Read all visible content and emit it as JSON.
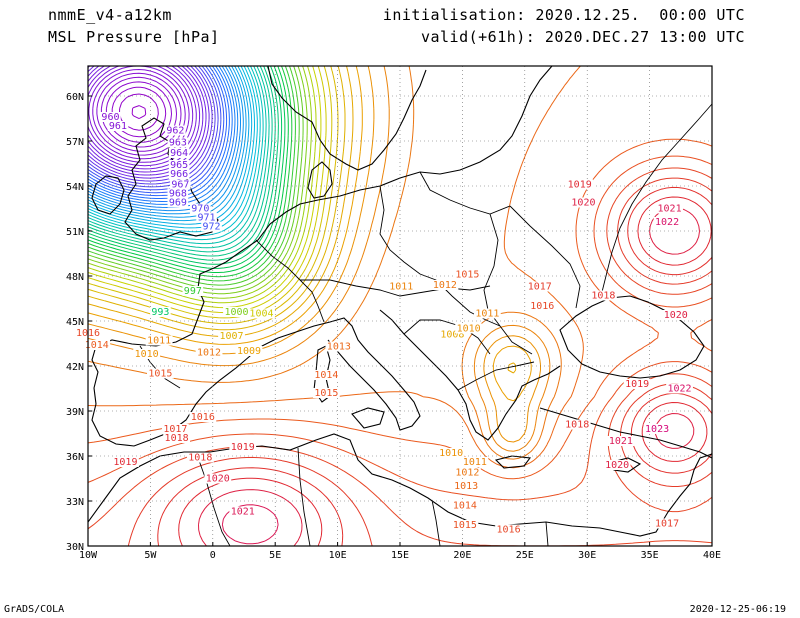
{
  "header": {
    "model": "nmmE_v4-a12km",
    "field": "MSL Pressure [hPa]",
    "initialisation": "initialisation: 2020.12.25.  00:00 UTC",
    "valid": "valid(+61h): 2020.DEC.27 13:00 UTC"
  },
  "footer": {
    "credit": "GrADS/COLA",
    "timestamp": "2020-12-25-06:19"
  },
  "map": {
    "lon_range": [
      -10,
      40
    ],
    "lat_range": [
      30,
      62
    ],
    "lon_ticks": [
      "10W",
      "5W",
      "0",
      "5E",
      "10E",
      "15E",
      "20E",
      "25E",
      "30E",
      "35E",
      "40E"
    ],
    "lat_ticks": [
      "30N",
      "33N",
      "36N",
      "39N",
      "42N",
      "45N",
      "48N",
      "51N",
      "54N",
      "57N",
      "60N"
    ],
    "grid_lines": "dotted",
    "contour_interval_hPa": 1,
    "colors": {
      "low": "#8a00c8",
      "mid_low": "#1e6bff",
      "mid": "#00c850",
      "mid_high": "#e0a000",
      "high": "#e04020",
      "highest": "#d0008a"
    },
    "contour_labels": [
      {
        "text": "960",
        "lon": -8.2,
        "lat": 58.4,
        "value": 960
      },
      {
        "text": "961",
        "lon": -7.6,
        "lat": 57.8,
        "value": 961
      },
      {
        "text": "962",
        "lon": -3.0,
        "lat": 57.5,
        "value": 962
      },
      {
        "text": "963",
        "lon": -2.8,
        "lat": 56.7,
        "value": 963
      },
      {
        "text": "964",
        "lon": -2.7,
        "lat": 56.0,
        "value": 964
      },
      {
        "text": "965",
        "lon": -2.7,
        "lat": 55.2,
        "value": 965
      },
      {
        "text": "966",
        "lon": -2.7,
        "lat": 54.6,
        "value": 966
      },
      {
        "text": "967",
        "lon": -2.6,
        "lat": 53.9,
        "value": 967
      },
      {
        "text": "968",
        "lon": -2.8,
        "lat": 53.3,
        "value": 968
      },
      {
        "text": "969",
        "lon": -2.8,
        "lat": 52.7,
        "value": 969
      },
      {
        "text": "970",
        "lon": -1.0,
        "lat": 52.3,
        "value": 970
      },
      {
        "text": "971",
        "lon": -0.5,
        "lat": 51.7,
        "value": 971
      },
      {
        "text": "972",
        "lon": -0.1,
        "lat": 51.1,
        "value": 972
      },
      {
        "text": "993",
        "lon": -4.2,
        "lat": 45.4,
        "value": 993
      },
      {
        "text": "997",
        "lon": -1.6,
        "lat": 46.8,
        "value": 997
      },
      {
        "text": "1000",
        "lon": 1.9,
        "lat": 45.4,
        "value": 1000
      },
      {
        "text": "1004",
        "lon": 3.9,
        "lat": 45.3,
        "value": 1004
      },
      {
        "text": "1007",
        "lon": 1.5,
        "lat": 43.8,
        "value": 1007
      },
      {
        "text": "1008",
        "lon": 19.2,
        "lat": 43.9,
        "value": 1008
      },
      {
        "text": "1009",
        "lon": 2.9,
        "lat": 42.8,
        "value": 1009
      },
      {
        "text": "1010",
        "lon": -5.3,
        "lat": 42.6,
        "value": 1010
      },
      {
        "text": "1010",
        "lon": 19.1,
        "lat": 36.0,
        "value": 1010
      },
      {
        "text": "1010",
        "lon": 20.5,
        "lat": 44.3,
        "value": 1010
      },
      {
        "text": "1011",
        "lon": -4.3,
        "lat": 43.5,
        "value": 1011
      },
      {
        "text": "1011",
        "lon": 15.1,
        "lat": 47.1,
        "value": 1011
      },
      {
        "text": "1011",
        "lon": 22.0,
        "lat": 45.3,
        "value": 1011
      },
      {
        "text": "1011",
        "lon": 21.0,
        "lat": 35.4,
        "value": 1011
      },
      {
        "text": "1012",
        "lon": -0.3,
        "lat": 42.7,
        "value": 1012
      },
      {
        "text": "1012",
        "lon": 18.6,
        "lat": 47.2,
        "value": 1012
      },
      {
        "text": "1012",
        "lon": 20.4,
        "lat": 34.7,
        "value": 1012
      },
      {
        "text": "1013",
        "lon": 10.1,
        "lat": 43.1,
        "value": 1013
      },
      {
        "text": "1013",
        "lon": 20.3,
        "lat": 33.8,
        "value": 1013
      },
      {
        "text": "1014",
        "lon": -9.3,
        "lat": 43.2,
        "value": 1014
      },
      {
        "text": "1014",
        "lon": 9.1,
        "lat": 41.2,
        "value": 1014
      },
      {
        "text": "1014",
        "lon": 20.2,
        "lat": 32.5,
        "value": 1014
      },
      {
        "text": "1015",
        "lon": -4.2,
        "lat": 41.3,
        "value": 1015
      },
      {
        "text": "1015",
        "lon": 9.1,
        "lat": 40.0,
        "value": 1015
      },
      {
        "text": "1015",
        "lon": 20.4,
        "lat": 47.9,
        "value": 1015
      },
      {
        "text": "1015",
        "lon": 20.2,
        "lat": 31.2,
        "value": 1015
      },
      {
        "text": "1016",
        "lon": -10.0,
        "lat": 44.0,
        "value": 1016
      },
      {
        "text": "1016",
        "lon": -0.8,
        "lat": 38.4,
        "value": 1016
      },
      {
        "text": "1016",
        "lon": 26.4,
        "lat": 45.8,
        "value": 1016
      },
      {
        "text": "1016",
        "lon": 23.7,
        "lat": 30.9,
        "value": 1016
      },
      {
        "text": "1017",
        "lon": -3.0,
        "lat": 37.6,
        "value": 1017
      },
      {
        "text": "1017",
        "lon": 26.2,
        "lat": 47.1,
        "value": 1017
      },
      {
        "text": "1017",
        "lon": 36.4,
        "lat": 31.3,
        "value": 1017
      },
      {
        "text": "1018",
        "lon": -2.9,
        "lat": 37.0,
        "value": 1018
      },
      {
        "text": "1018",
        "lon": -1.0,
        "lat": 35.7,
        "value": 1018
      },
      {
        "text": "1018",
        "lon": 31.3,
        "lat": 46.5,
        "value": 1018
      },
      {
        "text": "1018",
        "lon": 29.2,
        "lat": 37.9,
        "value": 1018
      },
      {
        "text": "1019",
        "lon": -7.0,
        "lat": 35.4,
        "value": 1019
      },
      {
        "text": "1019",
        "lon": 2.4,
        "lat": 36.4,
        "value": 1019
      },
      {
        "text": "1019",
        "lon": 29.4,
        "lat": 53.9,
        "value": 1019
      },
      {
        "text": "1019",
        "lon": 34.0,
        "lat": 40.6,
        "value": 1019
      },
      {
        "text": "1020",
        "lon": 0.4,
        "lat": 34.3,
        "value": 1020
      },
      {
        "text": "1020",
        "lon": 29.7,
        "lat": 52.7,
        "value": 1020
      },
      {
        "text": "1020",
        "lon": 37.1,
        "lat": 45.2,
        "value": 1020
      },
      {
        "text": "1020",
        "lon": 32.4,
        "lat": 35.2,
        "value": 1020
      },
      {
        "text": "1021",
        "lon": 2.4,
        "lat": 32.1,
        "value": 1021
      },
      {
        "text": "1021",
        "lon": 36.6,
        "lat": 52.3,
        "value": 1021
      },
      {
        "text": "1021",
        "lon": 32.7,
        "lat": 36.8,
        "value": 1021
      },
      {
        "text": "1022",
        "lon": 36.4,
        "lat": 51.4,
        "value": 1022
      },
      {
        "text": "1022",
        "lon": 37.4,
        "lat": 40.3,
        "value": 1022
      },
      {
        "text": "1023",
        "lon": 35.6,
        "lat": 37.6,
        "value": 1023
      }
    ]
  }
}
